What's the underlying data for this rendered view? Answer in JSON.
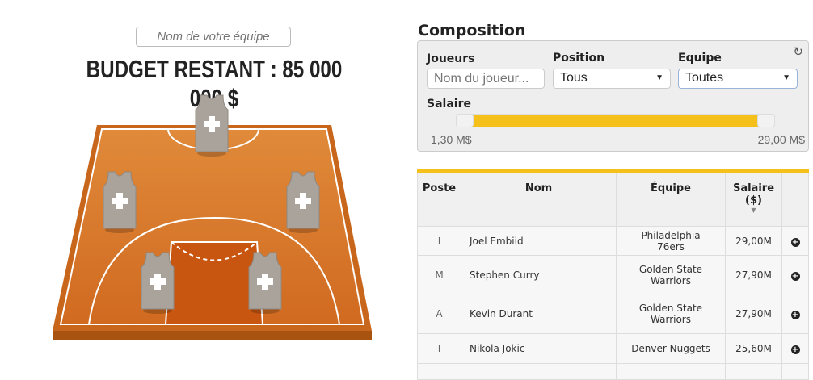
{
  "team_name_placeholder": "Nom de votre équipe",
  "budget": "BUDGET RESTANT : 85 000 000 $",
  "composition": {
    "title": "Composition",
    "joueurs_label": "Joueurs",
    "joueurs_placeholder": "Nom du joueur...",
    "position_label": "Position",
    "position_value": "Tous",
    "equipe_label": "Equipe",
    "equipe_value": "Toutes",
    "salaire_label": "Salaire",
    "salaire_min": "1,30 M$",
    "salaire_max": "29,00 M$",
    "refresh_icon": "refresh-icon"
  },
  "accent": "#f5c01a",
  "table": {
    "headers": [
      "Poste",
      "Nom",
      "Équipe",
      "Salaire ($)"
    ],
    "rows": [
      {
        "poste": "I",
        "nom": "Joel Embiid",
        "equipe": "Philadelphia 76ers",
        "salaire": "29,00M"
      },
      {
        "poste": "M",
        "nom": "Stephen Curry",
        "equipe": "Golden State Warriors",
        "salaire": "27,90M"
      },
      {
        "poste": "A",
        "nom": "Kevin Durant",
        "equipe": "Golden State Warriors",
        "salaire": "27,90M"
      },
      {
        "poste": "I",
        "nom": "Nikola Jokic",
        "equipe": "Denver Nuggets",
        "salaire": "25,60M"
      }
    ]
  }
}
